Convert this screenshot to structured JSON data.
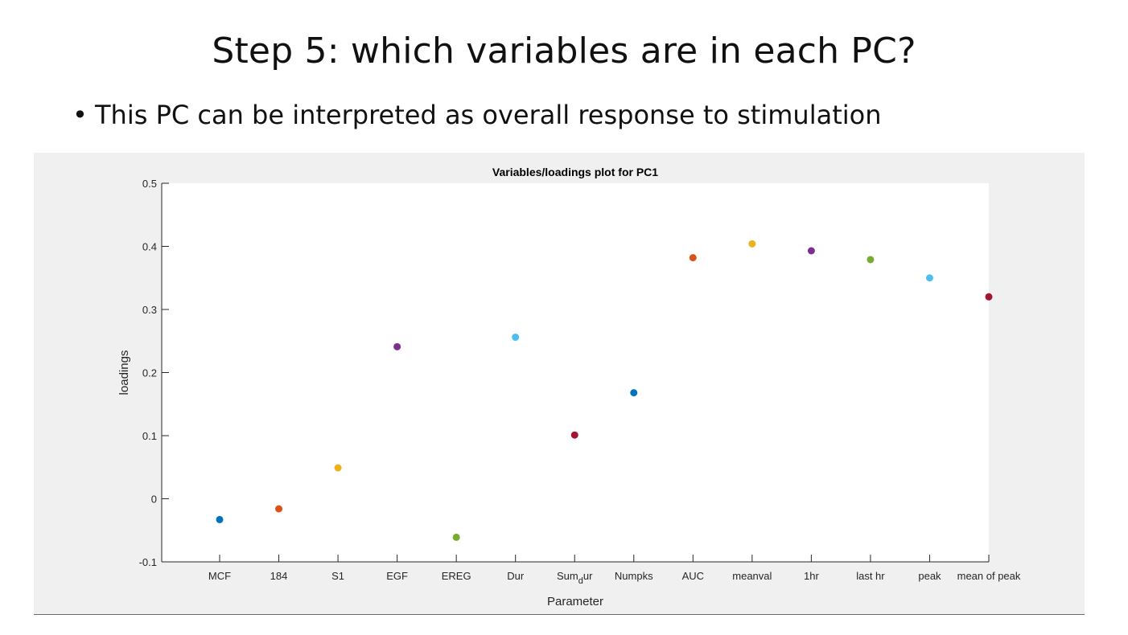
{
  "slide": {
    "title": "Step 5: which variables are in each PC?",
    "bullet": "This PC can be interpreted as overall response to stimulation"
  },
  "chart_data": {
    "type": "scatter",
    "title": "Variables/loadings plot for PC1",
    "xlabel": "Parameter",
    "ylabel": "loadings",
    "ylim": [
      -0.1,
      0.5
    ],
    "yticks": [
      -0.1,
      0,
      0.1,
      0.2,
      0.3,
      0.4,
      0.5
    ],
    "ytick_labels": [
      "-0.1",
      "0",
      "0.1",
      "0.2",
      "0.3",
      "0.4",
      "0.5"
    ],
    "categories": [
      "MCF",
      "184",
      "S1",
      "EGF",
      "EREG",
      "Dur",
      "Sum_dur",
      "Numpks",
      "AUC",
      "meanval",
      "1hr",
      "last hr",
      "peak",
      "mean of peak"
    ],
    "values": [
      -0.033,
      -0.016,
      0.049,
      0.241,
      -0.061,
      0.256,
      0.101,
      0.168,
      0.382,
      0.404,
      0.393,
      0.379,
      0.35,
      0.32
    ],
    "colors": [
      "#0072bd",
      "#d95319",
      "#edb120",
      "#7e2f8e",
      "#77ac30",
      "#4dbeee",
      "#a2142f",
      "#0072bd",
      "#d95319",
      "#edb120",
      "#7e2f8e",
      "#77ac30",
      "#4dbeee",
      "#a2142f"
    ],
    "grid": false,
    "legend": "none"
  }
}
